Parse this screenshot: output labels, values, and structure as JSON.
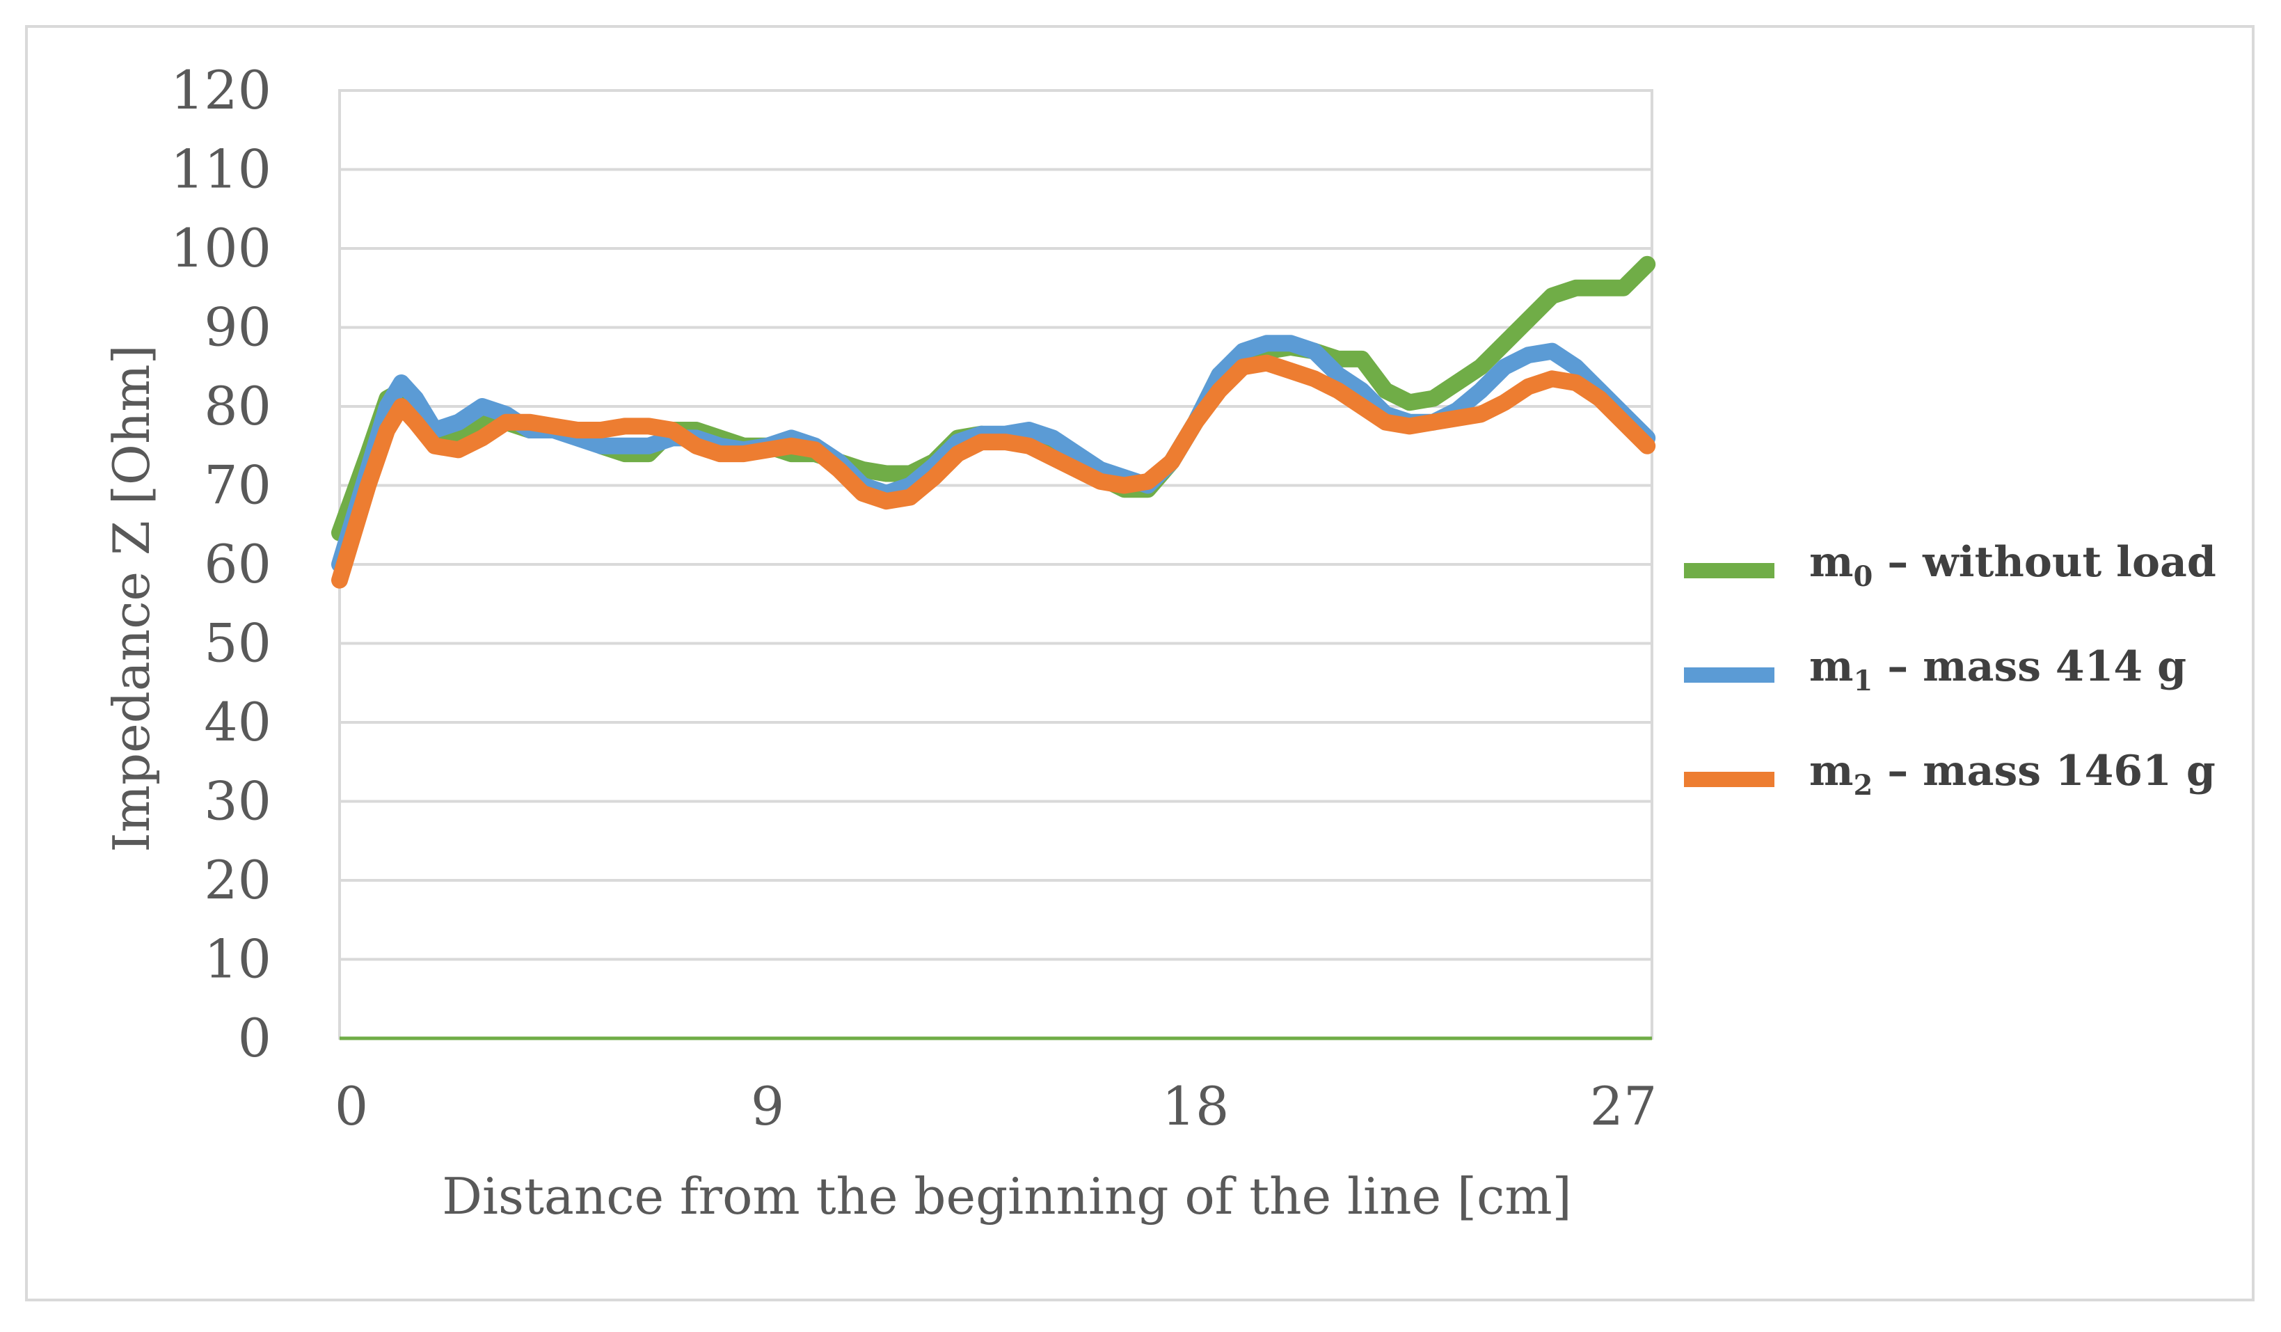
{
  "chart_data": {
    "type": "line",
    "title": "",
    "xlabel": "Distance from the beginning of the line [cm]",
    "ylabel": "Impedance Z [Ohm]",
    "xlim": [
      0,
      27.6
    ],
    "ylim": [
      0,
      120
    ],
    "xticks": [
      "0",
      "9",
      "18",
      "27"
    ],
    "xtick_values": [
      0.25,
      9,
      18,
      27
    ],
    "yticks": [
      "0",
      "10",
      "20",
      "30",
      "40",
      "50",
      "60",
      "70",
      "80",
      "90",
      "100",
      "110",
      "120"
    ],
    "grid": true,
    "legend_position": "right",
    "series": [
      {
        "name": "m0 – without load",
        "label_main": "m",
        "label_sub": "0",
        "label_rest": " – without load",
        "color": "#70ad47",
        "x": [
          0,
          0.3,
          0.6,
          1.0,
          1.3,
          1.6,
          2.0,
          2.5,
          3.0,
          3.5,
          4.0,
          4.5,
          5.0,
          5.5,
          6.0,
          6.5,
          7.0,
          7.5,
          8.0,
          8.5,
          9.0,
          9.5,
          10.0,
          10.5,
          11.0,
          11.5,
          12.0,
          12.5,
          13.0,
          13.5,
          14.0,
          14.5,
          15.0,
          15.5,
          16.0,
          16.5,
          17.0,
          17.5,
          18.0,
          18.5,
          19.0,
          19.5,
          20.0,
          20.5,
          21.0,
          21.5,
          22.0,
          22.5,
          23.0,
          23.5,
          24.0,
          24.5,
          25.0,
          25.5,
          26.0,
          26.5,
          27.0,
          27.5
        ],
        "values": [
          64,
          69,
          74,
          81,
          82,
          79,
          76,
          76,
          78,
          78,
          77,
          77,
          77,
          75,
          74,
          74,
          77,
          77,
          76,
          75,
          75,
          74,
          74,
          73,
          72,
          71.5,
          71.5,
          73,
          76,
          76.5,
          76,
          75,
          74,
          72.5,
          71,
          69.5,
          69.5,
          73,
          78,
          84,
          86,
          87,
          87.5,
          87,
          86,
          86,
          82,
          80.5,
          81,
          83,
          85,
          88,
          91,
          94,
          95,
          95,
          95,
          98
        ]
      },
      {
        "name": "m1 – mass 414 g",
        "label_main": "m",
        "label_sub": "1",
        "label_rest": " – mass 414 g",
        "color": "#5b9bd5",
        "x": [
          0,
          0.3,
          0.6,
          1.0,
          1.3,
          1.6,
          2.0,
          2.5,
          3.0,
          3.5,
          4.0,
          4.5,
          5.0,
          5.5,
          6.0,
          6.5,
          7.0,
          7.5,
          8.0,
          8.5,
          9.0,
          9.5,
          10.0,
          10.5,
          11.0,
          11.5,
          12.0,
          12.5,
          13.0,
          13.5,
          14.0,
          14.5,
          15.0,
          15.5,
          16.0,
          16.5,
          17.0,
          17.5,
          18.0,
          18.5,
          19.0,
          19.5,
          20.0,
          20.5,
          21.0,
          21.5,
          22.0,
          22.5,
          23.0,
          23.5,
          24.0,
          24.5,
          25.0,
          25.5,
          26.0,
          26.5,
          27.0,
          27.5
        ],
        "values": [
          60,
          66,
          72,
          80,
          83,
          81,
          77,
          78,
          80,
          79,
          77,
          77,
          76,
          75,
          75,
          75,
          76,
          76,
          75,
          74.5,
          75,
          76,
          75,
          73,
          70,
          69,
          70,
          72.5,
          75.5,
          76.5,
          76.5,
          77,
          76,
          74,
          72,
          71,
          70,
          73,
          78,
          84,
          87,
          88,
          88,
          87,
          84,
          82,
          79,
          78,
          78,
          79.5,
          82,
          85,
          86.5,
          87,
          85,
          82,
          79,
          76
        ]
      },
      {
        "name": "m2 – mass 1461 g",
        "label_main": "m",
        "label_sub": "2",
        "label_rest": " – mass 1461 g",
        "color": "#ed7d31",
        "x": [
          0,
          0.3,
          0.6,
          1.0,
          1.3,
          1.6,
          2.0,
          2.5,
          3.0,
          3.5,
          4.0,
          4.5,
          5.0,
          5.5,
          6.0,
          6.5,
          7.0,
          7.5,
          8.0,
          8.5,
          9.0,
          9.5,
          10.0,
          10.5,
          11.0,
          11.5,
          12.0,
          12.5,
          13.0,
          13.5,
          14.0,
          14.5,
          15.0,
          15.5,
          16.0,
          16.5,
          17.0,
          17.5,
          18.0,
          18.5,
          19.0,
          19.5,
          20.0,
          20.5,
          21.0,
          21.5,
          22.0,
          22.5,
          23.0,
          23.5,
          24.0,
          24.5,
          25.0,
          25.5,
          26.0,
          26.5,
          27.0,
          27.5
        ],
        "values": [
          58,
          64,
          70,
          77,
          80,
          78,
          75,
          74.5,
          76,
          78,
          78,
          77.5,
          77,
          77,
          77.5,
          77.5,
          77,
          75,
          74,
          74,
          74.5,
          75,
          74.5,
          72,
          69,
          68,
          68.5,
          71,
          74,
          75.5,
          75.5,
          75,
          73.5,
          72,
          70.5,
          70,
          70.5,
          73,
          78,
          82,
          85,
          85.5,
          84.5,
          83.5,
          82,
          80,
          78,
          77.5,
          78,
          78.5,
          79,
          80.5,
          82.5,
          83.5,
          83,
          81,
          78,
          75
        ]
      }
    ]
  }
}
